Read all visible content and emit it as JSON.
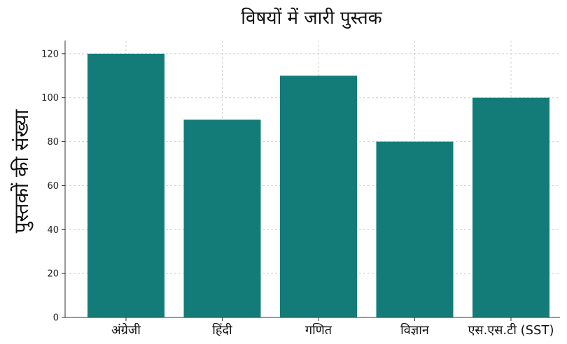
{
  "chart_data": {
    "type": "bar",
    "title": "विषयों में जारी पुस्तक",
    "xlabel": "",
    "ylabel": "पुस्तकों की संख्या",
    "categories": [
      "अंग्रेजी",
      "हिंदी",
      "गणित",
      "विज्ञान",
      "एस.एस.टी (SST)"
    ],
    "values": [
      120,
      90,
      110,
      80,
      100
    ],
    "ylim": [
      0,
      126
    ],
    "yticks": [
      0,
      20,
      40,
      60,
      80,
      100,
      120
    ],
    "grid": true,
    "colors": {
      "bar": "#137c78"
    }
  }
}
